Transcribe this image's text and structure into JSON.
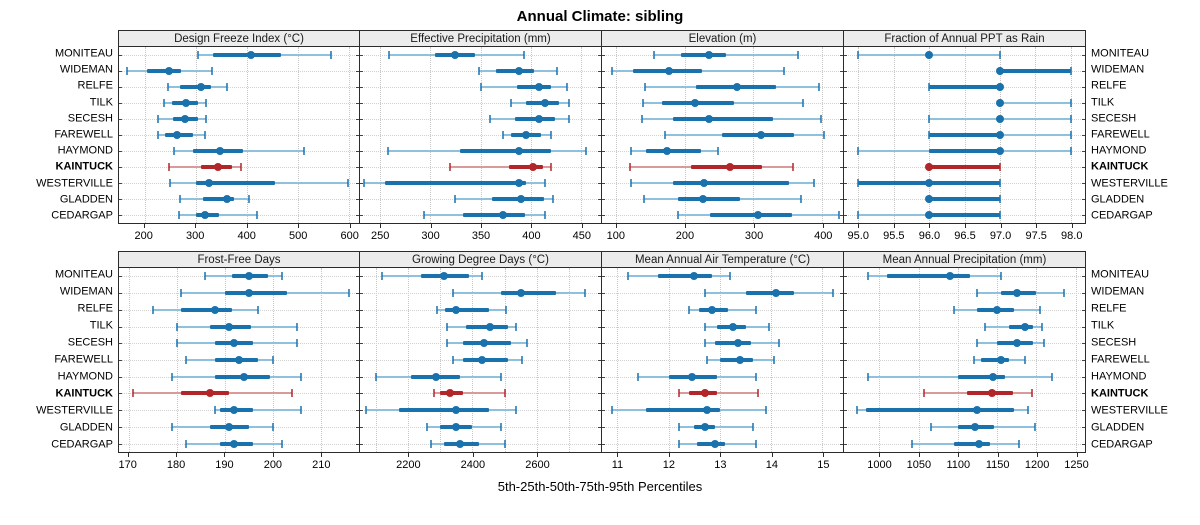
{
  "title": "Annual Climate: sibling",
  "caption": "5th-25th-50th-75th-95th Percentiles",
  "sites": [
    "MONITEAU",
    "WIDEMAN",
    "RELFE",
    "TILK",
    "SECESH",
    "FAREWELL",
    "HAYMOND",
    "KAINTUCK",
    "WESTERVILLE",
    "GLADDEN",
    "CEDARGAP"
  ],
  "highlight_site": "KAINTUCK",
  "colors": {
    "blue": "#1a72ad",
    "blue_light": "#8fc0dd",
    "red": "#b2262a",
    "red_light": "#d89a9a",
    "strip_bg": "#ececec",
    "panel_border": "#2b2b2b",
    "gridline": "#c6c6c6"
  },
  "chart_data": [
    {
      "type": "dotplot-interval",
      "title": "Design Freeze Index (°C)",
      "row": 1,
      "xlim": [
        150,
        620
      ],
      "ticks": [
        200,
        300,
        400,
        500,
        600
      ],
      "tick_labels": [
        "200",
        "300",
        "400",
        "500",
        "600"
      ],
      "grid": [
        200,
        300,
        400,
        500,
        600
      ],
      "percentiles": [
        "5th",
        "25th",
        "50th",
        "75th",
        "95th"
      ],
      "values": [
        [
          305,
          335,
          408,
          467,
          565
        ],
        [
          165,
          205,
          248,
          272,
          333
        ],
        [
          245,
          270,
          310,
          330,
          362
        ],
        [
          239,
          253,
          281,
          304,
          321
        ],
        [
          226,
          256,
          280,
          304,
          321
        ],
        [
          226,
          240,
          263,
          294,
          318
        ],
        [
          258,
          294,
          348,
          392,
          512
        ],
        [
          247,
          310,
          343,
          372,
          388
        ],
        [
          250,
          300,
          327,
          455,
          598
        ],
        [
          270,
          315,
          362,
          375,
          405
        ],
        [
          268,
          300,
          318,
          345,
          420
        ]
      ]
    },
    {
      "type": "dotplot-interval",
      "title": "Effective Precipitation (mm)",
      "row": 1,
      "xlim": [
        230,
        470
      ],
      "ticks": [
        250,
        300,
        350,
        400,
        450
      ],
      "tick_labels": [
        "250",
        "300",
        "350",
        "400",
        "450"
      ],
      "grid": [
        250,
        300,
        350,
        400,
        450
      ],
      "percentiles": [
        "5th",
        "25th",
        "50th",
        "75th",
        "95th"
      ],
      "values": [
        [
          259,
          305,
          325,
          345,
          393
        ],
        [
          349,
          365,
          388,
          403,
          426
        ],
        [
          350,
          386,
          408,
          420,
          436
        ],
        [
          380,
          395,
          414,
          428,
          438
        ],
        [
          359,
          384,
          408,
          424,
          438
        ],
        [
          372,
          380,
          395,
          410,
          420
        ],
        [
          258,
          330,
          388,
          420,
          455
        ],
        [
          320,
          378,
          402,
          412,
          420
        ],
        [
          234,
          255,
          388,
          395,
          414
        ],
        [
          325,
          361,
          390,
          413,
          422
        ],
        [
          294,
          333,
          372,
          394,
          414
        ]
      ]
    },
    {
      "type": "dotplot-interval",
      "title": "Elevation (m)",
      "row": 1,
      "xlim": [
        80,
        430
      ],
      "ticks": [
        100,
        200,
        300,
        400
      ],
      "tick_labels": [
        "100",
        "200",
        "300",
        "400"
      ],
      "grid": [
        100,
        200,
        300,
        400
      ],
      "percentiles": [
        "5th",
        "25th",
        "50th",
        "75th",
        "95th"
      ],
      "values": [
        [
          155,
          195,
          235,
          260,
          365
        ],
        [
          95,
          125,
          177,
          225,
          345
        ],
        [
          142,
          217,
          276,
          333,
          395
        ],
        [
          140,
          167,
          215,
          271,
          372
        ],
        [
          138,
          183,
          235,
          328,
          398
        ],
        [
          172,
          254,
          311,
          359,
          403
        ],
        [
          122,
          144,
          175,
          224,
          248
        ],
        [
          120,
          209,
          266,
          312,
          358
        ],
        [
          122,
          183,
          228,
          351,
          388
        ],
        [
          141,
          191,
          226,
          281,
          369
        ],
        [
          191,
          237,
          306,
          356,
          424
        ]
      ]
    },
    {
      "type": "dotplot-interval",
      "title": "Fraction of Annual PPT as Rain",
      "row": 1,
      "xlim": [
        94.8,
        98.2
      ],
      "ticks": [
        95.0,
        95.5,
        96.0,
        96.5,
        97.0,
        97.5,
        98.0
      ],
      "tick_labels": [
        "95.0",
        "95.5",
        "96.0",
        "96.5",
        "97.0",
        "97.5",
        "98.0"
      ],
      "grid": [
        95.0,
        95.5,
        96.0,
        96.5,
        97.0,
        97.5,
        98.0
      ],
      "percentiles": [
        "5th",
        "25th",
        "50th",
        "75th",
        "95th"
      ],
      "values": [
        [
          95,
          96,
          96,
          96,
          97
        ],
        [
          97,
          97,
          97,
          98,
          98
        ],
        [
          96,
          96,
          97,
          97,
          97
        ],
        [
          97,
          97,
          97,
          97,
          98
        ],
        [
          96,
          97,
          97,
          97,
          98
        ],
        [
          96,
          96,
          97,
          97,
          98
        ],
        [
          95,
          96,
          97,
          97,
          98
        ],
        [
          96,
          96,
          96,
          97,
          97
        ],
        [
          95,
          95,
          96,
          97,
          97
        ],
        [
          96,
          96,
          96,
          97,
          97
        ],
        [
          95,
          96,
          96,
          97,
          97
        ]
      ]
    },
    {
      "type": "dotplot-interval",
      "title": "Frost-Free Days",
      "row": 2,
      "xlim": [
        168,
        218
      ],
      "ticks": [
        170,
        180,
        190,
        200,
        210
      ],
      "tick_labels": [
        "170",
        "180",
        "190",
        "200",
        "210"
      ],
      "grid": [
        170,
        180,
        190,
        200,
        210
      ],
      "percentiles": [
        "5th",
        "25th",
        "50th",
        "75th",
        "95th"
      ],
      "values": [
        [
          186,
          191.5,
          195,
          199,
          202
        ],
        [
          181,
          190,
          195,
          203,
          216
        ],
        [
          175,
          181,
          188,
          191.5,
          197
        ],
        [
          180,
          187,
          191,
          195.5,
          205
        ],
        [
          180,
          188,
          192,
          196,
          205
        ],
        [
          182,
          188,
          193,
          197,
          200
        ],
        [
          179,
          188,
          194,
          199.5,
          206
        ],
        [
          171,
          181,
          187,
          191,
          204
        ],
        [
          188,
          189,
          192,
          196,
          206
        ],
        [
          179,
          187,
          191,
          195,
          200
        ],
        [
          182,
          189,
          192,
          196,
          202
        ]
      ]
    },
    {
      "type": "dotplot-interval",
      "title": "Growing Degree Days (°C)",
      "row": 2,
      "xlim": [
        2050,
        2800
      ],
      "ticks": [
        2200,
        2400,
        2600
      ],
      "tick_labels": [
        "2200",
        "2400",
        "2600"
      ],
      "grid": [
        2100,
        2200,
        2300,
        2400,
        2500,
        2600,
        2700
      ],
      "percentiles": [
        "5th",
        "25th",
        "50th",
        "75th",
        "95th"
      ],
      "values": [
        [
          2120,
          2240,
          2310,
          2390,
          2430
        ],
        [
          2340,
          2490,
          2550,
          2660,
          2750
        ],
        [
          2290,
          2315,
          2350,
          2450,
          2505
        ],
        [
          2320,
          2380,
          2455,
          2510,
          2535
        ],
        [
          2320,
          2370,
          2435,
          2520,
          2570
        ],
        [
          2340,
          2370,
          2430,
          2510,
          2555
        ],
        [
          2100,
          2210,
          2285,
          2360,
          2490
        ],
        [
          2280,
          2300,
          2330,
          2370,
          2500
        ],
        [
          2070,
          2170,
          2350,
          2450,
          2535
        ],
        [
          2260,
          2300,
          2350,
          2400,
          2490
        ],
        [
          2270,
          2310,
          2360,
          2420,
          2500
        ]
      ]
    },
    {
      "type": "dotplot-interval",
      "title": "Mean Annual Air Temperature (°C)",
      "row": 2,
      "xlim": [
        10.7,
        15.4
      ],
      "ticks": [
        11,
        12,
        13,
        14,
        15
      ],
      "tick_labels": [
        "11",
        "12",
        "13",
        "14",
        "15"
      ],
      "grid": [
        11,
        12,
        13,
        14,
        15
      ],
      "percentiles": [
        "5th",
        "25th",
        "50th",
        "75th",
        "95th"
      ],
      "values": [
        [
          11.2,
          11.8,
          12.5,
          12.85,
          13.2
        ],
        [
          12.7,
          13.5,
          14.1,
          14.45,
          15.2
        ],
        [
          12.4,
          12.6,
          12.85,
          13.15,
          13.7
        ],
        [
          12.7,
          12.95,
          13.25,
          13.5,
          13.95
        ],
        [
          12.7,
          12.9,
          13.35,
          13.6,
          14.15
        ],
        [
          12.75,
          13.0,
          13.4,
          13.65,
          14.05
        ],
        [
          11.4,
          12.0,
          12.45,
          12.95,
          13.7
        ],
        [
          12.2,
          12.4,
          12.7,
          12.95,
          13.75
        ],
        [
          10.9,
          11.55,
          12.75,
          13.0,
          13.9
        ],
        [
          12.2,
          12.5,
          12.7,
          12.9,
          13.65
        ],
        [
          12.2,
          12.55,
          12.9,
          13.1,
          13.7
        ]
      ]
    },
    {
      "type": "dotplot-interval",
      "title": "Mean Annual Precipitation (mm)",
      "row": 2,
      "xlim": [
        955,
        1262
      ],
      "ticks": [
        1000,
        1050,
        1100,
        1150,
        1200,
        1250
      ],
      "tick_labels": [
        "1000",
        "1050",
        "1100",
        "1150",
        "1200",
        "1250"
      ],
      "grid": [
        1000,
        1050,
        1100,
        1150,
        1200,
        1250
      ],
      "percentiles": [
        "5th",
        "25th",
        "50th",
        "75th",
        "95th"
      ],
      "values": [
        [
          985,
          1010,
          1090,
          1115,
          1155
        ],
        [
          1125,
          1155,
          1175,
          1200,
          1235
        ],
        [
          1095,
          1125,
          1150,
          1172,
          1205
        ],
        [
          1135,
          1165,
          1185,
          1196,
          1207
        ],
        [
          1125,
          1150,
          1175,
          1196,
          1210
        ],
        [
          1120,
          1130,
          1155,
          1165,
          1185
        ],
        [
          985,
          1100,
          1145,
          1160,
          1220
        ],
        [
          1057,
          1112,
          1143,
          1170,
          1195
        ],
        [
          972,
          983,
          1125,
          1172,
          1189
        ],
        [
          1066,
          1100,
          1122,
          1146,
          1198
        ],
        [
          1041,
          1095,
          1127,
          1141,
          1178
        ]
      ]
    }
  ]
}
